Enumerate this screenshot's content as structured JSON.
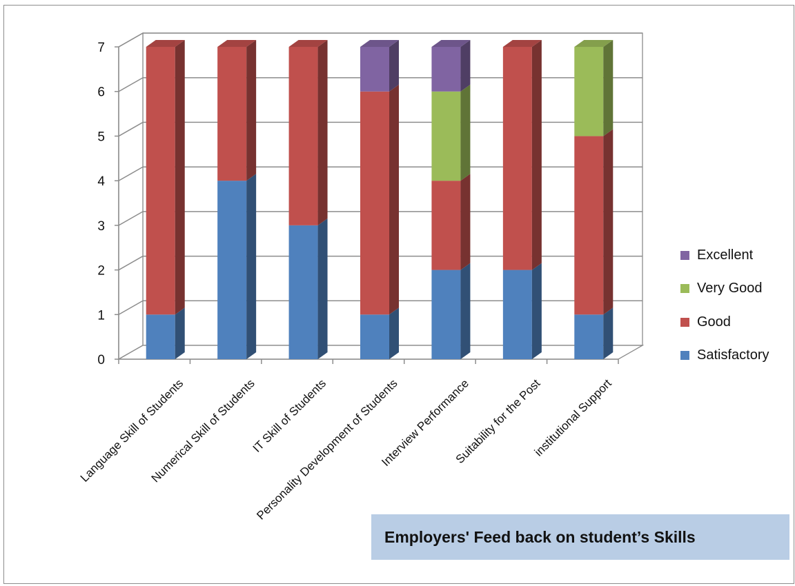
{
  "chart_data": {
    "type": "bar",
    "stacked": true,
    "style": "3d",
    "categories": [
      "Language Skill of Students",
      "Numerical Skill of Students",
      "IT Skill of Students",
      "Personality Development of Students",
      "Interview Performance",
      "Suitability for the Post",
      "institutional Support"
    ],
    "series": [
      {
        "name": "Satisfactory",
        "color": "#4f81bd",
        "values": [
          1,
          4,
          3,
          1,
          2,
          2,
          1
        ]
      },
      {
        "name": "Good",
        "color": "#c0504d",
        "values": [
          6,
          3,
          4,
          5,
          2,
          5,
          4
        ]
      },
      {
        "name": "Very Good",
        "color": "#9bbb59",
        "values": [
          0,
          0,
          0,
          0,
          2,
          0,
          2
        ]
      },
      {
        "name": "Excellent",
        "color": "#8064a2",
        "values": [
          0,
          0,
          0,
          1,
          1,
          0,
          0
        ]
      }
    ],
    "ylim": [
      0,
      7
    ],
    "yticks": [
      "0",
      "1",
      "2",
      "3",
      "4",
      "5",
      "6",
      "7"
    ],
    "grid": true,
    "legend": "right",
    "legend_order": [
      "Excellent",
      "Very Good",
      "Good",
      "Satisfactory"
    ]
  },
  "caption": "Employers' Feed back on student’s Skills"
}
